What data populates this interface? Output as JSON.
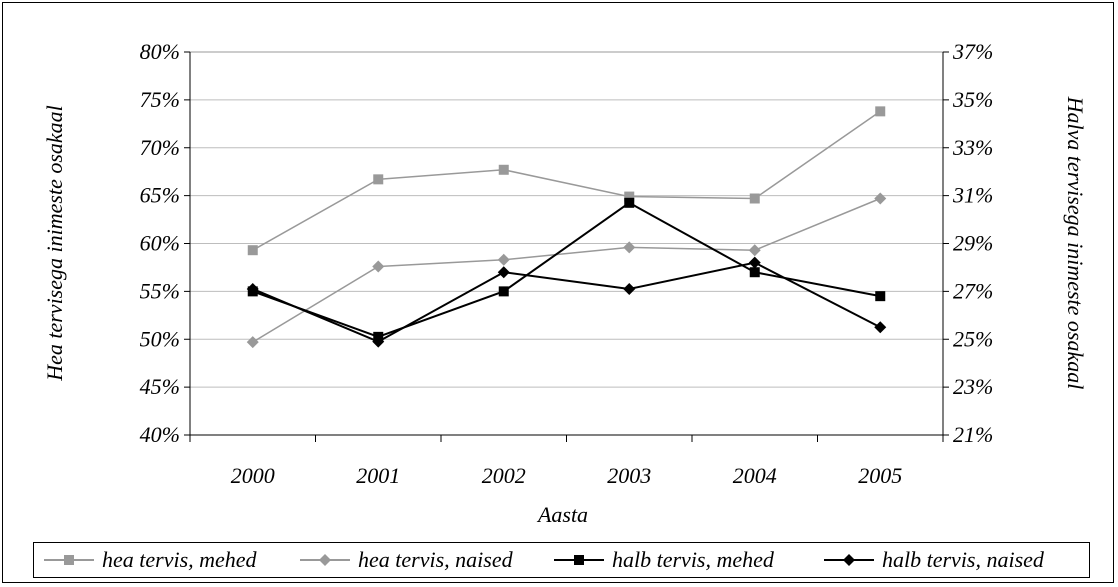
{
  "chart_data": {
    "type": "line",
    "xlabel": "Aasta",
    "ylabel_left": "Hea tervisega inimeste osakaal",
    "ylabel_right": "Halva tervisega inimeste osakaal",
    "categories": [
      "2000",
      "2001",
      "2002",
      "2003",
      "2004",
      "2005"
    ],
    "y_left": {
      "min": 40,
      "max": 80,
      "step": 5,
      "tick_labels": [
        "40%",
        "45%",
        "50%",
        "55%",
        "60%",
        "65%",
        "70%",
        "75%",
        "80%"
      ]
    },
    "y_right": {
      "min": 21,
      "max": 37,
      "step": 2,
      "tick_labels": [
        "21%",
        "23%",
        "25%",
        "27%",
        "29%",
        "31%",
        "33%",
        "35%",
        "37%"
      ]
    },
    "grid": true,
    "legend_position": "bottom",
    "series": [
      {
        "name": "hea tervis, mehed",
        "axis": "left",
        "marker": "square",
        "color": "#999999",
        "values": [
          59.3,
          66.7,
          67.7,
          64.9,
          64.7,
          73.8
        ]
      },
      {
        "name": "hea tervis, naised",
        "axis": "left",
        "marker": "diamond",
        "color": "#999999",
        "values": [
          49.7,
          57.6,
          58.3,
          59.6,
          59.3,
          64.7
        ]
      },
      {
        "name": "halb tervis, mehed",
        "axis": "right",
        "marker": "square",
        "color": "#000000",
        "values": [
          27.0,
          25.1,
          27.0,
          30.7,
          27.8,
          26.8
        ]
      },
      {
        "name": "halb tervis, naised",
        "axis": "right",
        "marker": "diamond",
        "color": "#000000",
        "values": [
          27.1,
          24.9,
          27.8,
          27.1,
          28.2,
          25.5
        ]
      }
    ]
  }
}
